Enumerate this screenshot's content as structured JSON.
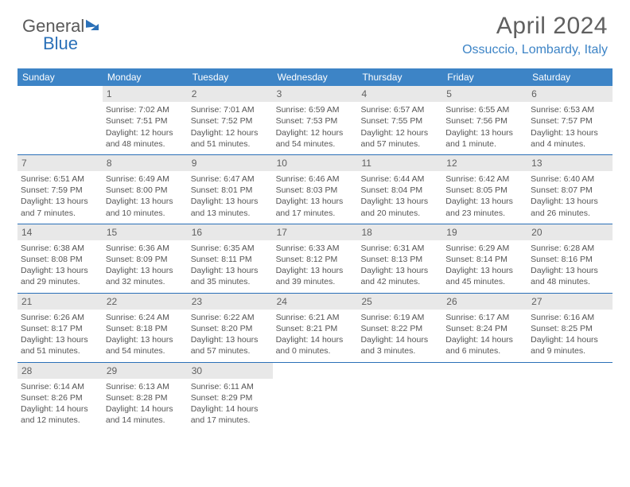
{
  "logo": {
    "part1": "General",
    "part2": "Blue"
  },
  "title": "April 2024",
  "location": "Ossuccio, Lombardy, Italy",
  "colors": {
    "header_bg": "#3d84c6",
    "row_border": "#2a70b8",
    "daynum_bg": "#e8e8e8",
    "text": "#555555",
    "location_text": "#3d84c6"
  },
  "weekdays": [
    "Sunday",
    "Monday",
    "Tuesday",
    "Wednesday",
    "Thursday",
    "Friday",
    "Saturday"
  ],
  "weeks": [
    [
      null,
      {
        "n": "1",
        "sr": "Sunrise: 7:02 AM",
        "ss": "Sunset: 7:51 PM",
        "d1": "Daylight: 12 hours",
        "d2": "and 48 minutes."
      },
      {
        "n": "2",
        "sr": "Sunrise: 7:01 AM",
        "ss": "Sunset: 7:52 PM",
        "d1": "Daylight: 12 hours",
        "d2": "and 51 minutes."
      },
      {
        "n": "3",
        "sr": "Sunrise: 6:59 AM",
        "ss": "Sunset: 7:53 PM",
        "d1": "Daylight: 12 hours",
        "d2": "and 54 minutes."
      },
      {
        "n": "4",
        "sr": "Sunrise: 6:57 AM",
        "ss": "Sunset: 7:55 PM",
        "d1": "Daylight: 12 hours",
        "d2": "and 57 minutes."
      },
      {
        "n": "5",
        "sr": "Sunrise: 6:55 AM",
        "ss": "Sunset: 7:56 PM",
        "d1": "Daylight: 13 hours",
        "d2": "and 1 minute."
      },
      {
        "n": "6",
        "sr": "Sunrise: 6:53 AM",
        "ss": "Sunset: 7:57 PM",
        "d1": "Daylight: 13 hours",
        "d2": "and 4 minutes."
      }
    ],
    [
      {
        "n": "7",
        "sr": "Sunrise: 6:51 AM",
        "ss": "Sunset: 7:59 PM",
        "d1": "Daylight: 13 hours",
        "d2": "and 7 minutes."
      },
      {
        "n": "8",
        "sr": "Sunrise: 6:49 AM",
        "ss": "Sunset: 8:00 PM",
        "d1": "Daylight: 13 hours",
        "d2": "and 10 minutes."
      },
      {
        "n": "9",
        "sr": "Sunrise: 6:47 AM",
        "ss": "Sunset: 8:01 PM",
        "d1": "Daylight: 13 hours",
        "d2": "and 13 minutes."
      },
      {
        "n": "10",
        "sr": "Sunrise: 6:46 AM",
        "ss": "Sunset: 8:03 PM",
        "d1": "Daylight: 13 hours",
        "d2": "and 17 minutes."
      },
      {
        "n": "11",
        "sr": "Sunrise: 6:44 AM",
        "ss": "Sunset: 8:04 PM",
        "d1": "Daylight: 13 hours",
        "d2": "and 20 minutes."
      },
      {
        "n": "12",
        "sr": "Sunrise: 6:42 AM",
        "ss": "Sunset: 8:05 PM",
        "d1": "Daylight: 13 hours",
        "d2": "and 23 minutes."
      },
      {
        "n": "13",
        "sr": "Sunrise: 6:40 AM",
        "ss": "Sunset: 8:07 PM",
        "d1": "Daylight: 13 hours",
        "d2": "and 26 minutes."
      }
    ],
    [
      {
        "n": "14",
        "sr": "Sunrise: 6:38 AM",
        "ss": "Sunset: 8:08 PM",
        "d1": "Daylight: 13 hours",
        "d2": "and 29 minutes."
      },
      {
        "n": "15",
        "sr": "Sunrise: 6:36 AM",
        "ss": "Sunset: 8:09 PM",
        "d1": "Daylight: 13 hours",
        "d2": "and 32 minutes."
      },
      {
        "n": "16",
        "sr": "Sunrise: 6:35 AM",
        "ss": "Sunset: 8:11 PM",
        "d1": "Daylight: 13 hours",
        "d2": "and 35 minutes."
      },
      {
        "n": "17",
        "sr": "Sunrise: 6:33 AM",
        "ss": "Sunset: 8:12 PM",
        "d1": "Daylight: 13 hours",
        "d2": "and 39 minutes."
      },
      {
        "n": "18",
        "sr": "Sunrise: 6:31 AM",
        "ss": "Sunset: 8:13 PM",
        "d1": "Daylight: 13 hours",
        "d2": "and 42 minutes."
      },
      {
        "n": "19",
        "sr": "Sunrise: 6:29 AM",
        "ss": "Sunset: 8:14 PM",
        "d1": "Daylight: 13 hours",
        "d2": "and 45 minutes."
      },
      {
        "n": "20",
        "sr": "Sunrise: 6:28 AM",
        "ss": "Sunset: 8:16 PM",
        "d1": "Daylight: 13 hours",
        "d2": "and 48 minutes."
      }
    ],
    [
      {
        "n": "21",
        "sr": "Sunrise: 6:26 AM",
        "ss": "Sunset: 8:17 PM",
        "d1": "Daylight: 13 hours",
        "d2": "and 51 minutes."
      },
      {
        "n": "22",
        "sr": "Sunrise: 6:24 AM",
        "ss": "Sunset: 8:18 PM",
        "d1": "Daylight: 13 hours",
        "d2": "and 54 minutes."
      },
      {
        "n": "23",
        "sr": "Sunrise: 6:22 AM",
        "ss": "Sunset: 8:20 PM",
        "d1": "Daylight: 13 hours",
        "d2": "and 57 minutes."
      },
      {
        "n": "24",
        "sr": "Sunrise: 6:21 AM",
        "ss": "Sunset: 8:21 PM",
        "d1": "Daylight: 14 hours",
        "d2": "and 0 minutes."
      },
      {
        "n": "25",
        "sr": "Sunrise: 6:19 AM",
        "ss": "Sunset: 8:22 PM",
        "d1": "Daylight: 14 hours",
        "d2": "and 3 minutes."
      },
      {
        "n": "26",
        "sr": "Sunrise: 6:17 AM",
        "ss": "Sunset: 8:24 PM",
        "d1": "Daylight: 14 hours",
        "d2": "and 6 minutes."
      },
      {
        "n": "27",
        "sr": "Sunrise: 6:16 AM",
        "ss": "Sunset: 8:25 PM",
        "d1": "Daylight: 14 hours",
        "d2": "and 9 minutes."
      }
    ],
    [
      {
        "n": "28",
        "sr": "Sunrise: 6:14 AM",
        "ss": "Sunset: 8:26 PM",
        "d1": "Daylight: 14 hours",
        "d2": "and 12 minutes."
      },
      {
        "n": "29",
        "sr": "Sunrise: 6:13 AM",
        "ss": "Sunset: 8:28 PM",
        "d1": "Daylight: 14 hours",
        "d2": "and 14 minutes."
      },
      {
        "n": "30",
        "sr": "Sunrise: 6:11 AM",
        "ss": "Sunset: 8:29 PM",
        "d1": "Daylight: 14 hours",
        "d2": "and 17 minutes."
      },
      null,
      null,
      null,
      null
    ]
  ]
}
